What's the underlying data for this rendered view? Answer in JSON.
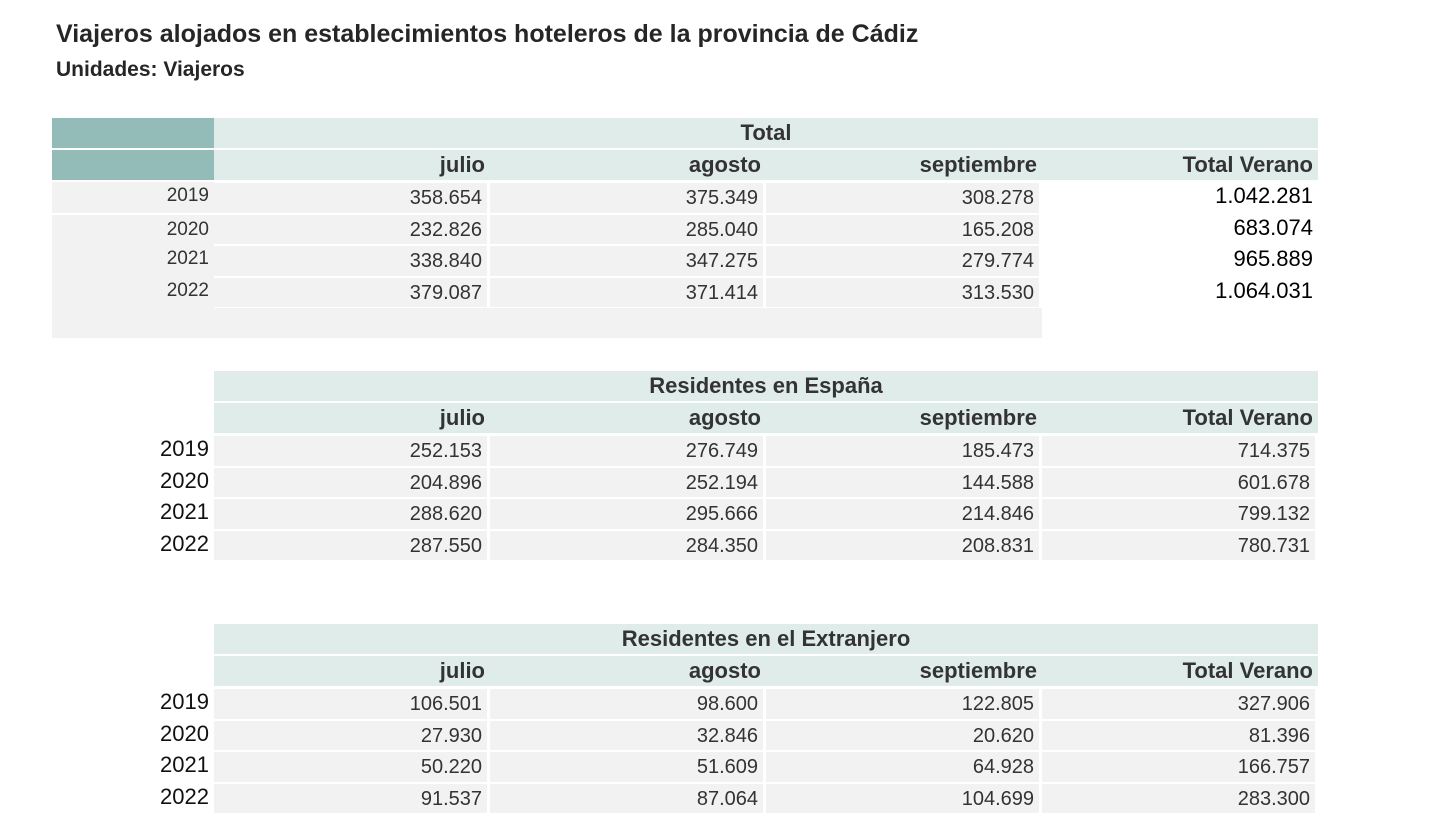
{
  "header": {
    "title": "Viajeros alojados en establecimientos hoteleros de la provincia de Cádiz",
    "subtitle": "Unidades: Viajeros"
  },
  "tables": [
    {
      "title": "Total",
      "columns": [
        "julio",
        "agosto",
        "septiembre",
        "Total Verano"
      ],
      "rows": [
        {
          "year": "2019",
          "values": [
            "358.654",
            "375.349",
            "308.278",
            "1.042.281"
          ]
        },
        {
          "year": "2020",
          "values": [
            "232.826",
            "285.040",
            "165.208",
            "683.074"
          ]
        },
        {
          "year": "2021",
          "values": [
            "338.840",
            "347.275",
            "279.774",
            "965.889"
          ]
        },
        {
          "year": "2022",
          "values": [
            "379.087",
            "371.414",
            "313.530",
            "1.064.031"
          ]
        }
      ]
    },
    {
      "title": "Residentes en España",
      "columns": [
        "julio",
        "agosto",
        "septiembre",
        "Total Verano"
      ],
      "rows": [
        {
          "year": "2019",
          "values": [
            "252.153",
            "276.749",
            "185.473",
            "714.375"
          ]
        },
        {
          "year": "2020",
          "values": [
            "204.896",
            "252.194",
            "144.588",
            "601.678"
          ]
        },
        {
          "year": "2021",
          "values": [
            "288.620",
            "295.666",
            "214.846",
            "799.132"
          ]
        },
        {
          "year": "2022",
          "values": [
            "287.550",
            "284.350",
            "208.831",
            "780.731"
          ]
        }
      ]
    },
    {
      "title": "Residentes en el Extranjero",
      "columns": [
        "julio",
        "agosto",
        "septiembre",
        "Total Verano"
      ],
      "rows": [
        {
          "year": "2019",
          "values": [
            "106.501",
            "98.600",
            "122.805",
            "327.906"
          ]
        },
        {
          "year": "2020",
          "values": [
            "27.930",
            "32.846",
            "20.620",
            "81.396"
          ]
        },
        {
          "year": "2021",
          "values": [
            "50.220",
            "51.609",
            "64.928",
            "166.757"
          ]
        },
        {
          "year": "2022",
          "values": [
            "91.537",
            "87.064",
            "104.699",
            "283.300"
          ]
        }
      ]
    }
  ]
}
